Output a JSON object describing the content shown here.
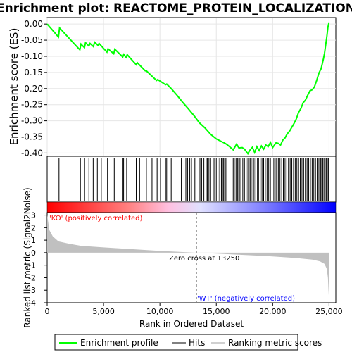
{
  "chart_data": {
    "type": "line",
    "title": "Enrichment plot: REACTOME_PROTEIN_LOCALIZATION",
    "es_panel": {
      "ylabel": "Enrichment score (ES)",
      "ylim": [
        -0.41,
        0.02
      ],
      "yticks": [
        0.0,
        -0.05,
        -0.1,
        -0.15,
        -0.2,
        -0.25,
        -0.3,
        -0.35,
        -0.4
      ],
      "ytick_labels": [
        "0.00",
        "-0.05",
        "-0.10",
        "-0.15",
        "-0.20",
        "-0.25",
        "-0.30",
        "-0.35",
        "-0.40"
      ],
      "grid": true,
      "series": [
        {
          "name": "Enrichment profile",
          "color": "#00ff00",
          "x": [
            0,
            1000,
            1100,
            2900,
            3000,
            3300,
            3400,
            3700,
            3800,
            4100,
            4200,
            4500,
            4600,
            5300,
            5400,
            5900,
            6000,
            6700,
            6800,
            7000,
            7100,
            7900,
            8000,
            8700,
            8800,
            9700,
            9800,
            10500,
            10600,
            11000,
            11500,
            12000,
            12500,
            13000,
            13500,
            14000,
            14500,
            15000,
            15500,
            15800,
            16000,
            16500,
            16800,
            17000,
            17300,
            17500,
            17800,
            18000,
            18200,
            18400,
            18600,
            18800,
            19000,
            19200,
            19400,
            19600,
            19800,
            20000,
            20300,
            20500,
            20700,
            20900,
            21100,
            21300,
            21500,
            21700,
            21900,
            22100,
            22300,
            22500,
            22700,
            22900,
            23100,
            23300,
            23500,
            23700,
            23900,
            24100,
            24300,
            24400,
            24500,
            24600,
            24700,
            24800,
            24900,
            25000
          ],
          "y": [
            0.0,
            -0.04,
            -0.012,
            -0.08,
            -0.062,
            -0.073,
            -0.058,
            -0.068,
            -0.06,
            -0.07,
            -0.056,
            -0.066,
            -0.06,
            -0.087,
            -0.077,
            -0.092,
            -0.078,
            -0.102,
            -0.094,
            -0.103,
            -0.095,
            -0.126,
            -0.12,
            -0.145,
            -0.145,
            -0.175,
            -0.172,
            -0.188,
            -0.186,
            -0.2,
            -0.22,
            -0.242,
            -0.262,
            -0.283,
            -0.306,
            -0.322,
            -0.342,
            -0.356,
            -0.365,
            -0.37,
            -0.375,
            -0.39,
            -0.372,
            -0.384,
            -0.383,
            -0.388,
            -0.402,
            -0.39,
            -0.382,
            -0.398,
            -0.38,
            -0.392,
            -0.378,
            -0.388,
            -0.375,
            -0.38,
            -0.367,
            -0.383,
            -0.368,
            -0.37,
            -0.375,
            -0.36,
            -0.353,
            -0.34,
            -0.332,
            -0.32,
            -0.308,
            -0.294,
            -0.274,
            -0.262,
            -0.244,
            -0.236,
            -0.221,
            -0.207,
            -0.204,
            -0.195,
            -0.175,
            -0.152,
            -0.138,
            -0.123,
            -0.108,
            -0.09,
            -0.065,
            -0.04,
            -0.01,
            0.005
          ]
        }
      ]
    },
    "hits_panel": {
      "legend_name": "Hits",
      "hit_positions": [
        1050,
        2950,
        3320,
        3700,
        4080,
        4450,
        4800,
        5350,
        5950,
        6700,
        6780,
        7050,
        7900,
        8200,
        8800,
        9300,
        9750,
        10050,
        10500,
        10600,
        11000,
        11900,
        12300,
        12450,
        12650,
        12800,
        13100,
        13550,
        13700,
        13900,
        14100,
        14200,
        14350,
        14500,
        14800,
        15000,
        15150,
        15300,
        15450,
        15550,
        15650,
        15750,
        15850,
        15950,
        16500,
        16600,
        16750,
        16900,
        17000,
        17100,
        17200,
        17350,
        17500,
        17650,
        17800,
        17900,
        18000,
        18100,
        18250,
        18350,
        18500,
        18650,
        18750,
        18900,
        19050,
        19200,
        19350,
        19500,
        19650,
        19800,
        19950,
        20100,
        20300,
        20500,
        20650,
        20800,
        20950,
        21100,
        21250,
        21400,
        21550,
        21700,
        21850,
        22000,
        22150,
        22300,
        22450,
        22600,
        22750,
        22900,
        23050,
        23200,
        23350,
        23500,
        23650,
        23800,
        23950,
        24100,
        24250,
        24350,
        24450,
        24550,
        24650,
        24750,
        24850,
        24950
      ]
    },
    "metric_panel": {
      "ylabel": "Ranked list metric (Signal2Noise)",
      "xlabel": "Rank in Ordered Dataset",
      "legend_name": "Ranking metric scores",
      "ylim": [
        -4,
        3.2
      ],
      "yticks": [
        3,
        2,
        1,
        0,
        -1,
        -2,
        -3,
        -4
      ],
      "ytick_labels": [
        "3",
        "2",
        "1",
        "0",
        "-1",
        "-2",
        "-3",
        "-4"
      ],
      "xlim": [
        0,
        25600
      ],
      "xticks": [
        0,
        5000,
        10000,
        15000,
        20000,
        25000
      ],
      "xtick_labels": [
        "0",
        "5,000",
        "10,000",
        "15,000",
        "20,000",
        "25,000"
      ],
      "x": [
        0,
        200,
        500,
        1000,
        2000,
        3000,
        5000,
        8000,
        10000,
        13250,
        16000,
        20000,
        22000,
        23500,
        24200,
        24600,
        24800,
        24900,
        24950,
        25000
      ],
      "y": [
        3.0,
        1.8,
        1.3,
        0.9,
        0.7,
        0.55,
        0.42,
        0.25,
        0.14,
        0.0,
        -0.12,
        -0.3,
        -0.42,
        -0.55,
        -0.7,
        -0.9,
        -1.3,
        -2.0,
        -3.0,
        -3.8
      ],
      "color": "#c0c0c0",
      "zero_cross_label": "Zero cross at 13250",
      "zero_cross": 13250,
      "pos_label": "'KO' (positively correlated)",
      "neg_label": "'WT' (negatively correlated)",
      "pos_color": "#ff0000",
      "neg_color": "#0000ff"
    },
    "legend": {
      "placement": "bottom",
      "items": [
        "Enrichment profile",
        "Hits",
        "Ranking metric scores"
      ]
    }
  }
}
